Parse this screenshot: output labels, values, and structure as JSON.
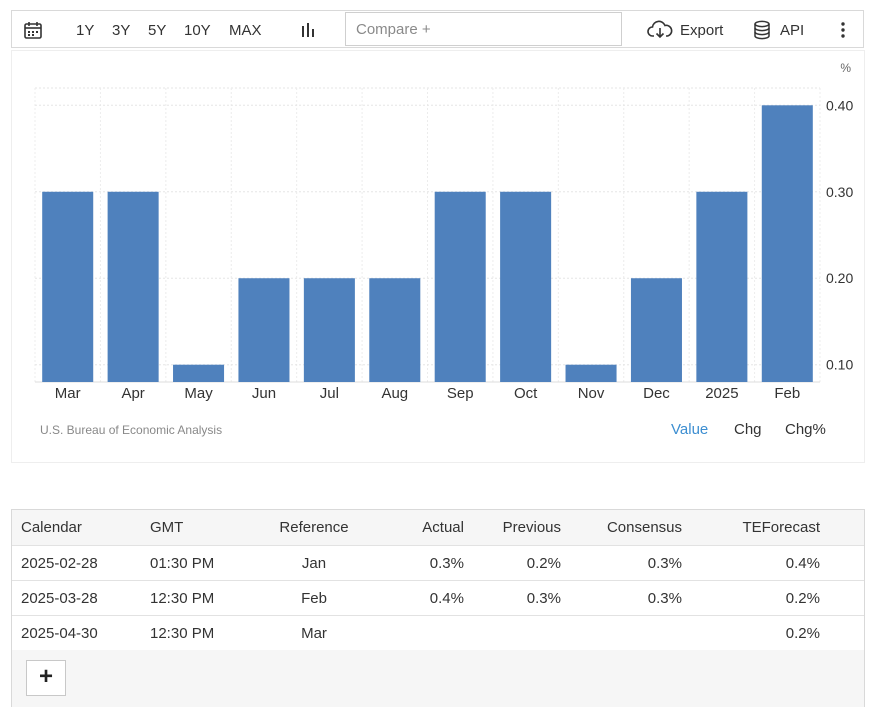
{
  "toolbar": {
    "ranges": [
      "1Y",
      "3Y",
      "5Y",
      "10Y",
      "MAX"
    ],
    "compare_placeholder": "Compare +",
    "export_label": "Export",
    "api_label": "API"
  },
  "chart": {
    "unit_label": "%",
    "source": "U.S. Bureau of Economic Analysis",
    "modes": [
      "Value",
      "Chg",
      "Chg%"
    ],
    "active_mode": "Value"
  },
  "chart_data": {
    "type": "bar",
    "categories": [
      "Mar",
      "Apr",
      "May",
      "Jun",
      "Jul",
      "Aug",
      "Sep",
      "Oct",
      "Nov",
      "Dec",
      "2025",
      "Feb"
    ],
    "values": [
      0.3,
      0.3,
      0.1,
      0.2,
      0.2,
      0.2,
      0.3,
      0.3,
      0.1,
      0.2,
      0.3,
      0.4
    ],
    "yticks": [
      "0.10",
      "0.20",
      "0.30",
      "0.40"
    ],
    "ylim": [
      0.08,
      0.42
    ],
    "bar_color": "#4f81bd",
    "grid": true,
    "y_axis_side": "right"
  },
  "table": {
    "headers": [
      "Calendar",
      "GMT",
      "Reference",
      "Actual",
      "Previous",
      "Consensus",
      "TEForecast"
    ],
    "rows": [
      [
        "2025-02-28",
        "01:30 PM",
        "Jan",
        "0.3%",
        "0.2%",
        "0.3%",
        "0.4%"
      ],
      [
        "2025-03-28",
        "12:30 PM",
        "Feb",
        "0.4%",
        "0.3%",
        "0.3%",
        "0.2%"
      ],
      [
        "2025-04-30",
        "12:30 PM",
        "Mar",
        "",
        "",
        "",
        "0.2%"
      ]
    ],
    "add_label": "+"
  }
}
